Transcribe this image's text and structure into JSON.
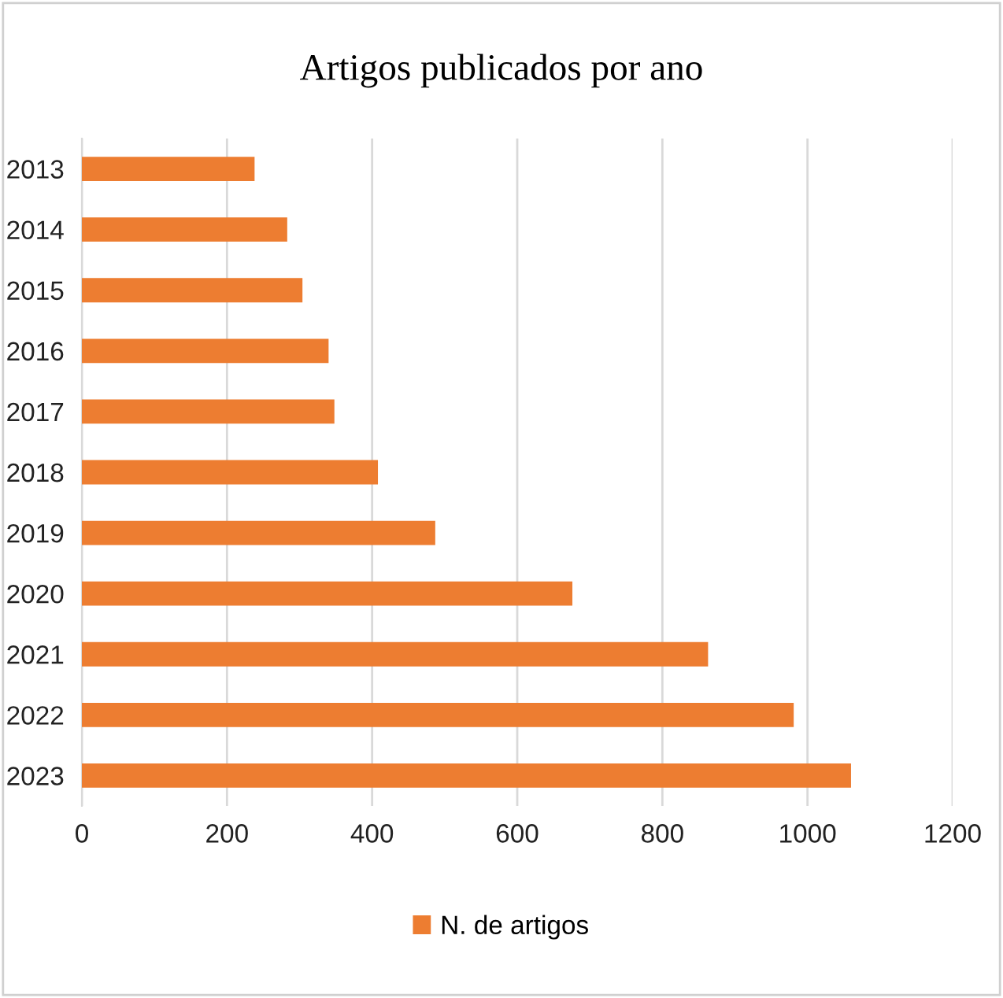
{
  "chart_data": {
    "type": "bar",
    "orientation": "horizontal",
    "title": "Artigos publicados por ano",
    "categories": [
      "2013",
      "2014",
      "2015",
      "2016",
      "2017",
      "2018",
      "2019",
      "2020",
      "2021",
      "2022",
      "2023"
    ],
    "series": [
      {
        "name": "N. de artigos",
        "color": "#ed7d31",
        "values": [
          238,
          283,
          304,
          340,
          348,
          408,
          487,
          676,
          863,
          981,
          1060
        ]
      }
    ],
    "xlim": [
      0,
      1200
    ],
    "xticks": [
      0,
      200,
      400,
      600,
      800,
      1000,
      1200
    ],
    "grid": "x",
    "legend": "bottom"
  }
}
